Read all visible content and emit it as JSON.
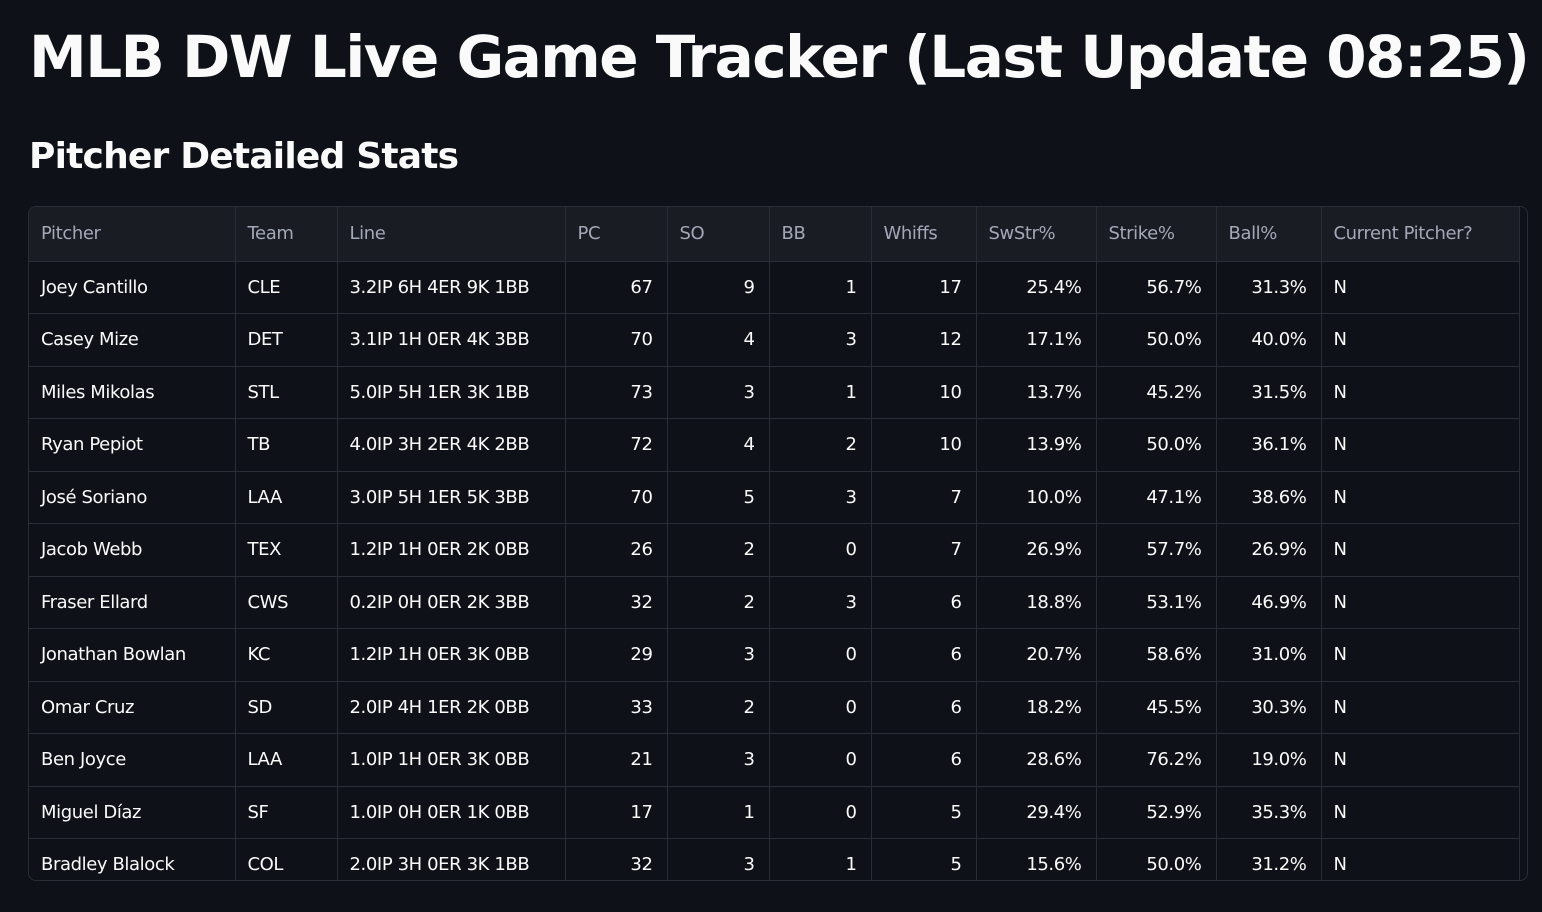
{
  "header": {
    "title": "MLB DW Live Game Tracker (Last Update 08:25)",
    "subtitle": "Pitcher Detailed Stats"
  },
  "table": {
    "columns": [
      "Pitcher",
      "Team",
      "Line",
      "PC",
      "SO",
      "BB",
      "Whiffs",
      "SwStr%",
      "Strike%",
      "Ball%",
      "Current Pitcher?"
    ],
    "rows": [
      [
        "Joey Cantillo",
        "CLE",
        "3.2IP 6H 4ER 9K 1BB",
        "67",
        "9",
        "1",
        "17",
        "25.4%",
        "56.7%",
        "31.3%",
        "N"
      ],
      [
        "Casey Mize",
        "DET",
        "3.1IP 1H 0ER 4K 3BB",
        "70",
        "4",
        "3",
        "12",
        "17.1%",
        "50.0%",
        "40.0%",
        "N"
      ],
      [
        "Miles Mikolas",
        "STL",
        "5.0IP 5H 1ER 3K 1BB",
        "73",
        "3",
        "1",
        "10",
        "13.7%",
        "45.2%",
        "31.5%",
        "N"
      ],
      [
        "Ryan Pepiot",
        "TB",
        "4.0IP 3H 2ER 4K 2BB",
        "72",
        "4",
        "2",
        "10",
        "13.9%",
        "50.0%",
        "36.1%",
        "N"
      ],
      [
        "José Soriano",
        "LAA",
        "3.0IP 5H 1ER 5K 3BB",
        "70",
        "5",
        "3",
        "7",
        "10.0%",
        "47.1%",
        "38.6%",
        "N"
      ],
      [
        "Jacob Webb",
        "TEX",
        "1.2IP 1H 0ER 2K 0BB",
        "26",
        "2",
        "0",
        "7",
        "26.9%",
        "57.7%",
        "26.9%",
        "N"
      ],
      [
        "Fraser Ellard",
        "CWS",
        "0.2IP 0H 0ER 2K 3BB",
        "32",
        "2",
        "3",
        "6",
        "18.8%",
        "53.1%",
        "46.9%",
        "N"
      ],
      [
        "Jonathan Bowlan",
        "KC",
        "1.2IP 1H 0ER 3K 0BB",
        "29",
        "3",
        "0",
        "6",
        "20.7%",
        "58.6%",
        "31.0%",
        "N"
      ],
      [
        "Omar Cruz",
        "SD",
        "2.0IP 4H 1ER 2K 0BB",
        "33",
        "2",
        "0",
        "6",
        "18.2%",
        "45.5%",
        "30.3%",
        "N"
      ],
      [
        "Ben Joyce",
        "LAA",
        "1.0IP 1H 0ER 3K 0BB",
        "21",
        "3",
        "0",
        "6",
        "28.6%",
        "76.2%",
        "19.0%",
        "N"
      ],
      [
        "Miguel Díaz",
        "SF",
        "1.0IP 0H 0ER 1K 0BB",
        "17",
        "1",
        "0",
        "5",
        "29.4%",
        "52.9%",
        "35.3%",
        "N"
      ],
      [
        "Bradley Blalock",
        "COL",
        "2.0IP 3H 0ER 3K 1BB",
        "32",
        "3",
        "1",
        "5",
        "15.6%",
        "50.0%",
        "31.2%",
        "N"
      ]
    ]
  },
  "colors": {
    "background": "#0e1117",
    "header_bg": "#1a1c24",
    "grid_line": "#2a2d36",
    "text": "#fafafa",
    "header_text": "#a3a8b8"
  }
}
